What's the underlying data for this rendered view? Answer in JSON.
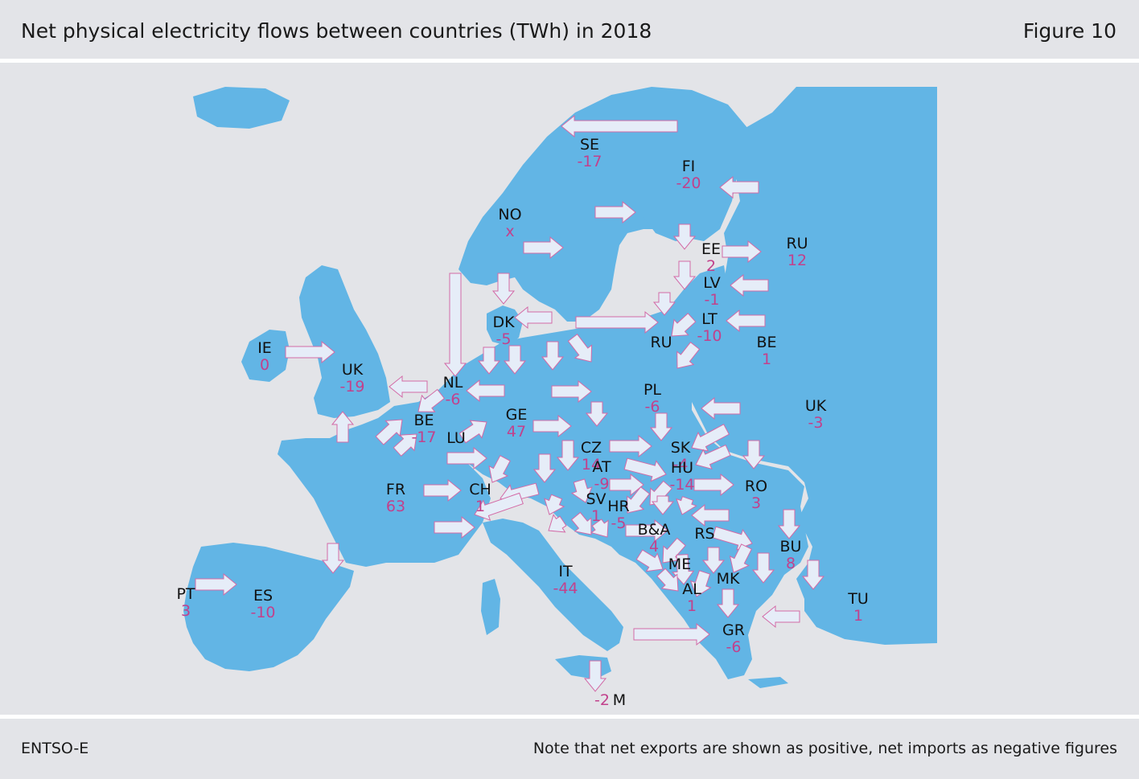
{
  "title": "Net physical electricity flows between countries (TWh) in 2018",
  "figure_label": "Figure 10",
  "source": "ENTSO-E",
  "note": "Note that net exports are shown as positive, net imports as negative figures",
  "colors": {
    "land": "#62b5e5",
    "sea": "#e3e4e8",
    "value": "#c2418c",
    "arrow_fill": "#e6edf8",
    "arrow_stroke": "#d36aa6"
  },
  "countries": [
    {
      "code": "SE",
      "value": "-17"
    },
    {
      "code": "FI",
      "value": "-20"
    },
    {
      "code": "NO",
      "value": "x"
    },
    {
      "code": "EE",
      "value": "2"
    },
    {
      "code": "RU",
      "value": "12"
    },
    {
      "code": "LV",
      "value": "-1"
    },
    {
      "code": "DK",
      "value": "-5"
    },
    {
      "code": "LT",
      "value": "-10"
    },
    {
      "code": "RU",
      "value": ""
    },
    {
      "code": "BE",
      "value": "1"
    },
    {
      "code": "IE",
      "value": "0"
    },
    {
      "code": "UK",
      "value": "-19"
    },
    {
      "code": "NL",
      "value": "-6"
    },
    {
      "code": "PL",
      "value": "-6"
    },
    {
      "code": "UK",
      "value": "-3"
    },
    {
      "code": "BE",
      "value": "-17"
    },
    {
      "code": "GE",
      "value": "47"
    },
    {
      "code": "LU",
      "value": ""
    },
    {
      "code": "CZ",
      "value": "14"
    },
    {
      "code": "SK",
      "value": "-4"
    },
    {
      "code": "AT",
      "value": "-9"
    },
    {
      "code": "HU",
      "value": "-14"
    },
    {
      "code": "FR",
      "value": "63"
    },
    {
      "code": "CH",
      "value": "1"
    },
    {
      "code": "RO",
      "value": "3"
    },
    {
      "code": "SV",
      "value": "1"
    },
    {
      "code": "HR",
      "value": "-5"
    },
    {
      "code": "B&A",
      "value": "4"
    },
    {
      "code": "RS",
      "value": ""
    },
    {
      "code": "BU",
      "value": "8"
    },
    {
      "code": "ME",
      "value": ""
    },
    {
      "code": "MK",
      "value": ""
    },
    {
      "code": "AL",
      "value": "1"
    },
    {
      "code": "IT",
      "value": "-44"
    },
    {
      "code": "PT",
      "value": "3"
    },
    {
      "code": "ES",
      "value": "-10"
    },
    {
      "code": "TU",
      "value": "1"
    },
    {
      "code": "GR",
      "value": "-6"
    },
    {
      "code": "M",
      "value": "-2"
    }
  ]
}
